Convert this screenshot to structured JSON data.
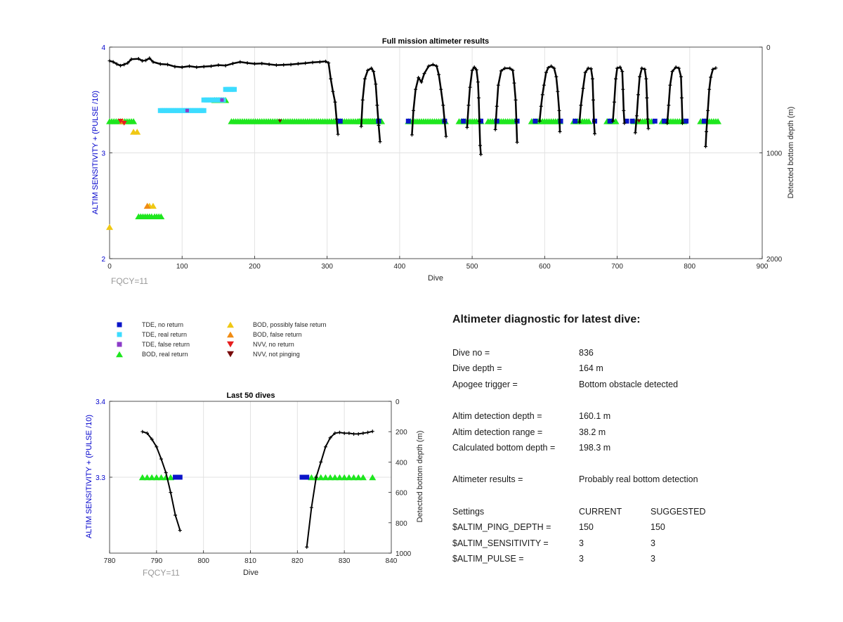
{
  "chart_data": [
    {
      "type": "scatter",
      "title": "Full mission altimeter results",
      "xlabel": "Dive",
      "ylabel": "ALTIM SENSITIVITY + (PULSE /10)",
      "ylabel_right": "Detected bottom depth (m)",
      "xlim": [
        0,
        900
      ],
      "ylim": [
        2,
        4
      ],
      "ylim_right": [
        2000,
        0
      ],
      "xticks": [
        0,
        100,
        200,
        300,
        400,
        500,
        600,
        700,
        800,
        900
      ],
      "yticks": [
        2,
        3,
        4
      ],
      "yticks_right": [
        0,
        1000,
        2000
      ],
      "grid": true,
      "annotation": "FQCY=11",
      "depth_profile_segments": [
        [
          [
            0,
            130
          ],
          [
            5,
            140
          ],
          [
            10,
            160
          ],
          [
            15,
            175
          ],
          [
            20,
            165
          ],
          [
            25,
            150
          ],
          [
            30,
            115
          ],
          [
            40,
            110
          ],
          [
            45,
            130
          ],
          [
            50,
            125
          ],
          [
            55,
            105
          ],
          [
            60,
            140
          ],
          [
            70,
            160
          ],
          [
            80,
            165
          ],
          [
            90,
            185
          ],
          [
            100,
            190
          ],
          [
            110,
            180
          ],
          [
            120,
            190
          ],
          [
            130,
            185
          ],
          [
            140,
            180
          ],
          [
            150,
            170
          ],
          [
            160,
            175
          ],
          [
            170,
            155
          ],
          [
            180,
            140
          ],
          [
            190,
            150
          ],
          [
            200,
            158
          ],
          [
            210,
            155
          ],
          [
            220,
            163
          ],
          [
            230,
            170
          ],
          [
            240,
            168
          ],
          [
            250,
            165
          ],
          [
            260,
            158
          ],
          [
            270,
            152
          ],
          [
            280,
            145
          ],
          [
            290,
            140
          ],
          [
            298,
            135
          ],
          [
            302,
            150
          ],
          [
            305,
            300
          ],
          [
            308,
            420
          ],
          [
            311,
            520
          ],
          [
            313,
            680
          ],
          [
            315,
            825
          ]
        ],
        [
          [
            347,
            750
          ],
          [
            349,
            500
          ],
          [
            352,
            300
          ],
          [
            356,
            220
          ],
          [
            361,
            200
          ],
          [
            364,
            230
          ],
          [
            367,
            350
          ],
          [
            369,
            550
          ],
          [
            371,
            740
          ],
          [
            373,
            895
          ]
        ],
        [
          [
            417,
            830
          ],
          [
            419,
            600
          ],
          [
            422,
            400
          ],
          [
            426,
            290
          ],
          [
            430,
            330
          ],
          [
            434,
            250
          ],
          [
            440,
            180
          ],
          [
            446,
            165
          ],
          [
            451,
            180
          ],
          [
            454,
            260
          ],
          [
            457,
            400
          ],
          [
            460,
            550
          ],
          [
            462,
            700
          ],
          [
            464,
            845
          ]
        ],
        [
          [
            493,
            760
          ],
          [
            495,
            550
          ],
          [
            497,
            380
          ],
          [
            500,
            220
          ],
          [
            503,
            190
          ],
          [
            506,
            215
          ],
          [
            508,
            330
          ],
          [
            509,
            480
          ],
          [
            510,
            700
          ],
          [
            511,
            930
          ],
          [
            512,
            1015
          ]
        ],
        [
          [
            532,
            780
          ],
          [
            534,
            560
          ],
          [
            536,
            360
          ],
          [
            540,
            225
          ],
          [
            545,
            200
          ],
          [
            552,
            200
          ],
          [
            556,
            220
          ],
          [
            558,
            340
          ],
          [
            560,
            500
          ],
          [
            561,
            700
          ],
          [
            562,
            900
          ]
        ],
        [
          [
            593,
            700
          ],
          [
            595,
            560
          ],
          [
            597,
            450
          ],
          [
            599,
            360
          ],
          [
            602,
            240
          ],
          [
            605,
            195
          ],
          [
            609,
            180
          ],
          [
            613,
            200
          ],
          [
            616,
            280
          ],
          [
            618,
            420
          ],
          [
            620,
            600
          ],
          [
            621,
            800
          ]
        ],
        [
          [
            648,
            710
          ],
          [
            650,
            550
          ],
          [
            653,
            390
          ],
          [
            656,
            240
          ],
          [
            660,
            200
          ],
          [
            664,
            205
          ],
          [
            666,
            300
          ],
          [
            667,
            500
          ],
          [
            668,
            700
          ],
          [
            669,
            820
          ]
        ],
        [
          [
            694,
            700
          ],
          [
            696,
            520
          ],
          [
            698,
            300
          ],
          [
            700,
            200
          ],
          [
            704,
            190
          ],
          [
            707,
            230
          ],
          [
            708,
            400
          ],
          [
            709,
            600
          ],
          [
            710,
            720
          ]
        ],
        [
          [
            725,
            810
          ],
          [
            727,
            650
          ],
          [
            729,
            450
          ],
          [
            731,
            280
          ],
          [
            734,
            200
          ],
          [
            738,
            210
          ],
          [
            740,
            300
          ],
          [
            741,
            480
          ],
          [
            742,
            680
          ],
          [
            743,
            770
          ]
        ],
        [
          [
            769,
            720
          ],
          [
            771,
            550
          ],
          [
            773,
            360
          ],
          [
            776,
            230
          ],
          [
            781,
            190
          ],
          [
            785,
            200
          ],
          [
            788,
            280
          ],
          [
            789,
            480
          ],
          [
            790,
            720
          ]
        ],
        [
          [
            822,
            940
          ],
          [
            823,
            800
          ],
          [
            825,
            600
          ],
          [
            827,
            400
          ],
          [
            829,
            285
          ],
          [
            832,
            210
          ],
          [
            836,
            198
          ]
        ]
      ],
      "tde_no_return": [
        [
          318,
          3.3
        ],
        [
          371,
          3.3
        ],
        [
          412,
          3.3
        ],
        [
          462,
          3.3
        ],
        [
          488,
          3.3
        ],
        [
          512,
          3.3
        ],
        [
          534,
          3.3
        ],
        [
          562,
          3.3
        ],
        [
          587,
          3.3
        ],
        [
          622,
          3.3
        ],
        [
          642,
          3.3
        ],
        [
          669,
          3.3
        ],
        [
          690,
          3.3
        ],
        [
          713,
          3.3
        ],
        [
          721,
          3.3
        ],
        [
          752,
          3.3
        ],
        [
          765,
          3.3
        ],
        [
          795,
          3.3
        ],
        [
          820,
          3.3
        ]
      ],
      "tde_real_return": [
        [
          [
            70,
            130
          ],
          3.4
        ],
        [
          [
            130,
            157
          ],
          3.5
        ],
        [
          [
            160,
            172
          ],
          3.6
        ]
      ],
      "tde_false_return": [
        [
          107,
          3.4
        ],
        [
          155,
          3.5
        ]
      ],
      "bod_real_return": [
        [
          [
            0,
            35
          ],
          3.3
        ],
        [
          [
            168,
            375
          ],
          3.3
        ],
        [
          [
            344,
            370
          ],
          3.3
        ],
        [
          [
            412,
            465
          ],
          3.3
        ],
        [
          [
            482,
            512
          ],
          3.3
        ],
        [
          [
            522,
            560
          ],
          3.3
        ],
        [
          [
            582,
            622
          ],
          3.3
        ],
        [
          [
            640,
            662
          ],
          3.3
        ],
        [
          [
            686,
            700
          ],
          3.3
        ],
        [
          [
            723,
            748
          ],
          3.3
        ],
        [
          [
            762,
            792
          ],
          3.3
        ],
        [
          [
            815,
            840
          ],
          3.3
        ],
        [
          [
            40,
            60
          ],
          2.4
        ],
        [
          [
            62,
            72
          ],
          2.4
        ],
        [
          [
            145,
            160
          ],
          3.5
        ]
      ],
      "bod_possibly_false_return": [
        [
          0,
          2.3
        ],
        [
          33,
          3.2
        ],
        [
          38,
          3.2
        ],
        [
          55,
          2.5
        ],
        [
          60,
          2.5
        ]
      ],
      "bod_false_return": [
        [
          52,
          2.5
        ],
        [
          18,
          3.3
        ]
      ],
      "nvv_no_return": [
        [
          15,
          3.3
        ],
        [
          20,
          3.28
        ]
      ],
      "nvv_not_pinging": [
        [
          235,
          3.3
        ],
        [
          730,
          3.3
        ]
      ]
    },
    {
      "type": "scatter",
      "title": "Last 50 dives",
      "xlabel": "Dive",
      "ylabel": "ALTIM SENSITIVITY + (PULSE /10)",
      "ylabel_right": "Detected bottom depth (m)",
      "xlim": [
        780,
        840
      ],
      "ylim": [
        3.2,
        3.4
      ],
      "ylim_right": [
        1000,
        0
      ],
      "xticks": [
        780,
        790,
        800,
        810,
        820,
        830,
        840
      ],
      "yticks": [
        3.3,
        3.4
      ],
      "yticks_right": [
        0,
        200,
        400,
        600,
        800,
        1000
      ],
      "grid": true,
      "annotation": "FQCY=11",
      "depth_profile_segments": [
        [
          [
            787,
            200
          ],
          [
            788,
            210
          ],
          [
            789,
            250
          ],
          [
            790,
            300
          ],
          [
            791,
            380
          ],
          [
            792,
            470
          ],
          [
            793,
            600
          ],
          [
            794,
            750
          ],
          [
            795,
            850
          ]
        ],
        [
          [
            822,
            960
          ],
          [
            823,
            700
          ],
          [
            824,
            500
          ],
          [
            825,
            400
          ],
          [
            826,
            300
          ],
          [
            827,
            240
          ],
          [
            828,
            210
          ],
          [
            829,
            205
          ],
          [
            830,
            210
          ],
          [
            831,
            210
          ],
          [
            832,
            215
          ],
          [
            833,
            215
          ],
          [
            834,
            210
          ],
          [
            835,
            205
          ],
          [
            836,
            198
          ]
        ]
      ],
      "bod_real_return": [
        [
          787,
          3.3
        ],
        [
          788,
          3.3
        ],
        [
          789,
          3.3
        ],
        [
          790,
          3.3
        ],
        [
          791,
          3.3
        ],
        [
          792,
          3.3
        ],
        [
          793,
          3.3
        ],
        [
          823,
          3.3
        ],
        [
          824,
          3.3
        ],
        [
          825,
          3.3
        ],
        [
          826,
          3.3
        ],
        [
          827,
          3.3
        ],
        [
          828,
          3.3
        ],
        [
          829,
          3.3
        ],
        [
          830,
          3.3
        ],
        [
          831,
          3.3
        ],
        [
          832,
          3.3
        ],
        [
          833,
          3.3
        ],
        [
          834,
          3.3
        ],
        [
          836,
          3.3
        ]
      ],
      "tde_no_return": [
        [
          794,
          3.3
        ],
        [
          795,
          3.3
        ],
        [
          821,
          3.3
        ],
        [
          822,
          3.3
        ]
      ]
    }
  ],
  "legend": [
    {
      "label": "TDE, no return",
      "color": "#0a14c8",
      "marker": "square"
    },
    {
      "label": "TDE, real return",
      "color": "#3cdcff",
      "marker": "square"
    },
    {
      "label": "TDE, false return",
      "color": "#8c3cc8",
      "marker": "square"
    },
    {
      "label": "BOD, real return",
      "color": "#1ee61e",
      "marker": "triangle-up"
    },
    {
      "label": "BOD, possibly false return",
      "color": "#f0c814",
      "marker": "triangle-up"
    },
    {
      "label": "BOD, false return",
      "color": "#f08c14",
      "marker": "triangle-up"
    },
    {
      "label": "NVV, no return",
      "color": "#e61e1e",
      "marker": "triangle-down"
    },
    {
      "label": "NVV, not pinging",
      "color": "#780a0a",
      "marker": "triangle-down"
    }
  ],
  "diagnostic": {
    "heading": "Altimeter diagnostic for latest dive:",
    "rows": [
      {
        "label": "Dive no =",
        "value": "836"
      },
      {
        "label": "Dive depth =",
        "value": "164 m"
      },
      {
        "label": "Apogee trigger =",
        "value": "Bottom obstacle detected"
      },
      {
        "label": "Altim detection depth =",
        "value": "160.1 m"
      },
      {
        "label": "Altim detection range =",
        "value": "38.2 m"
      },
      {
        "label": "Calculated bottom depth =",
        "value": "198.3 m"
      },
      {
        "label": "Altimeter results =",
        "value": "Probably real bottom detection"
      }
    ],
    "settings_header": {
      "label": "Settings",
      "current": "CURRENT",
      "suggested": "SUGGESTED"
    },
    "settings": [
      {
        "label": "$ALTIM_PING_DEPTH =",
        "current": "150",
        "suggested": "150"
      },
      {
        "label": "$ALTIM_SENSITIVITY =",
        "current": "3",
        "suggested": "3"
      },
      {
        "label": "$ALTIM_PULSE =",
        "current": "3",
        "suggested": "3"
      }
    ]
  }
}
